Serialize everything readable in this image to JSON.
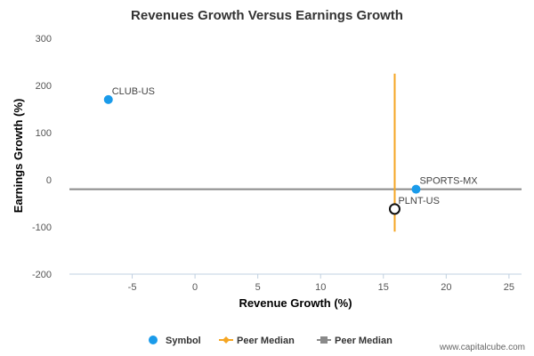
{
  "chart_data": {
    "type": "scatter",
    "title": "Revenues Growth Versus Earnings Growth",
    "xlabel": "Revenue Growth (%)",
    "ylabel": "Earnings Growth (%)",
    "xlim": [
      -10,
      26
    ],
    "ylim": [
      -200,
      300
    ],
    "xticks": [
      -5,
      0,
      5,
      10,
      15,
      20,
      25
    ],
    "yticks": [
      -200,
      -100,
      0,
      100,
      200,
      300
    ],
    "grid": false,
    "legend_position": "bottom",
    "points": [
      {
        "label": "CLUB-US",
        "x": -6.9,
        "y": 170,
        "style": "filled",
        "color": "#1a9bea"
      },
      {
        "label": "SPORTS-MX",
        "x": 17.6,
        "y": -20,
        "style": "filled",
        "color": "#1a9bea"
      },
      {
        "label": "PLNT-US",
        "x": 15.9,
        "y": -62,
        "style": "hollow",
        "color": "#111111"
      }
    ],
    "peer_median_revenue": {
      "name": "Peer Median",
      "x": 15.9,
      "y_range": [
        -110,
        225
      ],
      "color": "#f5a623"
    },
    "peer_median_earnings": {
      "name": "Peer Median",
      "y": -20,
      "color": "#8a8a8a"
    },
    "legend": [
      {
        "name": "Symbol",
        "marker": "dot",
        "color": "#1a9bea"
      },
      {
        "name": "Peer Median",
        "marker": "diamond-line",
        "color": "#f5a623"
      },
      {
        "name": "Peer Median",
        "marker": "square-line",
        "color": "#8a8a8a"
      }
    ]
  },
  "credit": "www.capitalcube.com"
}
